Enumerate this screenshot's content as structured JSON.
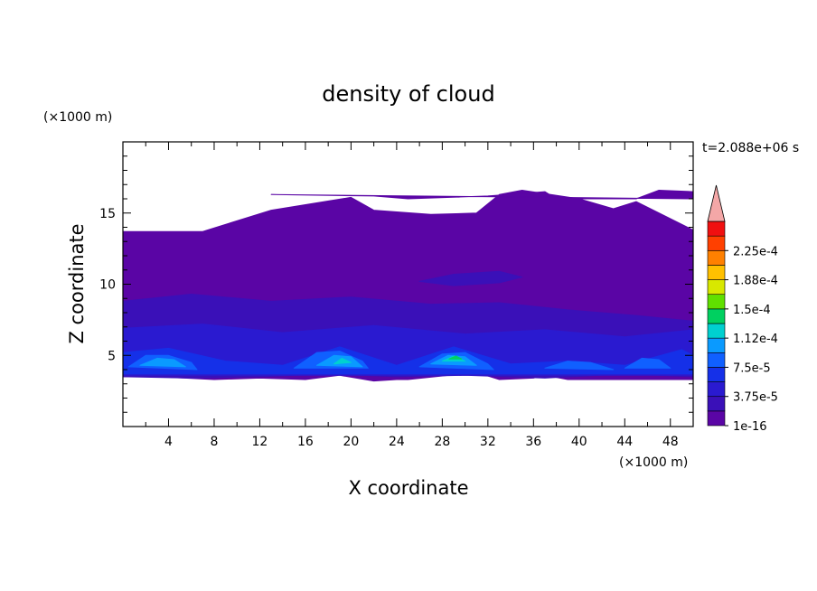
{
  "chart_data": {
    "type": "heatmap",
    "title": "density of cloud",
    "xlabel": "X coordinate",
    "ylabel": "Z coordinate",
    "x_unit": "(×1000 m)",
    "y_unit": "(×1000 m)",
    "time_label": "t=2.088e+06 s",
    "xlim": [
      0,
      50
    ],
    "ylim": [
      0,
      20
    ],
    "x_ticks": [
      4,
      8,
      12,
      16,
      20,
      24,
      28,
      32,
      36,
      40,
      44,
      48
    ],
    "y_ticks": [
      5,
      10,
      15
    ],
    "colorbar": {
      "levels": [
        1e-16,
        1.875e-05,
        3.75e-05,
        5.625e-05,
        7.5e-05,
        9.375e-05,
        0.0001125,
        0.00013125,
        0.00015,
        0.00016875,
        0.0001875,
        0.00020625,
        0.000225,
        0.00024375
      ],
      "tick_labels": [
        "1e-16",
        "3.75e-5",
        "7.5e-5",
        "1.12e-4",
        "1.5e-4",
        "1.88e-4",
        "2.25e-4"
      ],
      "tick_values": [
        1e-16,
        3.75e-05,
        7.5e-05,
        0.0001125,
        0.00015,
        0.0001875,
        0.000225
      ],
      "colors": [
        "#5a05a5",
        "#3a10b8",
        "#2a1ad0",
        "#1530e8",
        "#1060ff",
        "#0a9aff",
        "#00d0d0",
        "#00d060",
        "#60e000",
        "#d8e800",
        "#ffc000",
        "#ff8000",
        "#ff4000",
        "#f01010"
      ],
      "over_color": "#f4a7a7",
      "extend": "max"
    },
    "regions": [
      {
        "level": 0,
        "x": [
          0,
          0,
          7,
          13,
          20,
          22,
          27,
          31,
          33,
          35,
          40,
          43,
          45,
          50,
          50,
          39,
          37,
          36,
          33,
          31,
          25,
          24,
          22,
          19,
          16,
          12,
          8,
          3,
          0
        ],
        "z": [
          11.0,
          13.7,
          13.7,
          15.2,
          16.1,
          15.2,
          14.9,
          15.0,
          16.3,
          16.6,
          16.0,
          15.3,
          15.8,
          13.8,
          3.3,
          3.3,
          3.6,
          3.4,
          3.3,
          3.8,
          3.3,
          3.3,
          3.2,
          3.6,
          3.3,
          3.4,
          3.3,
          3.5,
          3.5
        ]
      },
      {
        "level": 0,
        "x": [
          13,
          22,
          25,
          32,
          37,
          38,
          45,
          47,
          50,
          50
        ],
        "z": [
          16.3,
          16.2,
          16.0,
          16.2,
          16.5,
          16.0,
          16.0,
          16.6,
          16.5,
          16.0
        ]
      },
      {
        "level": 1,
        "x": [
          0,
          6,
          13,
          20,
          27,
          33,
          39,
          45,
          50,
          50,
          44,
          37,
          30,
          24,
          18,
          12,
          6,
          0
        ],
        "z": [
          8.8,
          9.3,
          8.8,
          9.1,
          8.6,
          8.7,
          8.2,
          7.8,
          7.4,
          3.5,
          3.7,
          3.4,
          3.6,
          3.5,
          3.7,
          3.5,
          3.4,
          3.5
        ]
      },
      {
        "level": 1,
        "x": [
          26,
          29,
          33,
          35,
          33,
          29,
          26
        ],
        "z": [
          10.2,
          10.7,
          10.9,
          10.5,
          10.1,
          9.9,
          10.2
        ]
      },
      {
        "level": 2,
        "x": [
          0,
          7,
          14,
          22,
          30,
          37,
          44,
          50,
          50,
          0
        ],
        "z": [
          6.9,
          7.2,
          6.6,
          7.1,
          6.5,
          6.8,
          6.3,
          6.8,
          3.6,
          3.6
        ]
      },
      {
        "level": 3,
        "x": [
          0,
          4,
          9,
          14,
          19,
          24,
          29,
          34,
          39,
          44,
          49,
          50,
          50,
          0
        ],
        "z": [
          5.2,
          5.5,
          4.6,
          4.3,
          5.6,
          4.3,
          5.6,
          4.4,
          4.6,
          4.3,
          5.4,
          5.0,
          3.7,
          3.7
        ]
      },
      {
        "level": 4,
        "x": [
          0.5,
          2,
          4,
          6,
          6.5
        ],
        "z": [
          4.2,
          5.0,
          5.0,
          4.5,
          4.0
        ]
      },
      {
        "level": 4,
        "x": [
          15,
          17,
          19,
          21,
          21.5
        ],
        "z": [
          4.1,
          5.2,
          5.3,
          4.6,
          4.1
        ]
      },
      {
        "level": 4,
        "x": [
          26,
          28,
          30,
          32,
          32.5
        ],
        "z": [
          4.2,
          5.1,
          5.2,
          4.4,
          4.0
        ]
      },
      {
        "level": 4,
        "x": [
          37,
          39,
          41,
          43
        ],
        "z": [
          4.1,
          4.6,
          4.5,
          4.0
        ]
      },
      {
        "level": 4,
        "x": [
          44,
          45.5,
          47,
          48
        ],
        "z": [
          4.1,
          4.8,
          4.7,
          4.1
        ]
      },
      {
        "level": 5,
        "x": [
          17,
          18.5,
          20,
          21
        ],
        "z": [
          4.3,
          5.0,
          4.9,
          4.2
        ]
      },
      {
        "level": 5,
        "x": [
          27,
          28.5,
          30,
          31
        ],
        "z": [
          4.4,
          5.0,
          4.9,
          4.3
        ]
      },
      {
        "level": 5,
        "x": [
          1.5,
          3,
          4.5,
          5.5
        ],
        "z": [
          4.3,
          4.8,
          4.7,
          4.2
        ]
      },
      {
        "level": 6,
        "x": [
          18.5,
          19.2,
          20
        ],
        "z": [
          4.4,
          4.8,
          4.5
        ]
      },
      {
        "level": 6,
        "x": [
          28,
          29,
          30
        ],
        "z": [
          4.6,
          4.95,
          4.6
        ]
      },
      {
        "level": 7,
        "x": [
          28.6,
          29.2,
          29.7
        ],
        "z": [
          4.75,
          4.95,
          4.75
        ]
      }
    ]
  }
}
